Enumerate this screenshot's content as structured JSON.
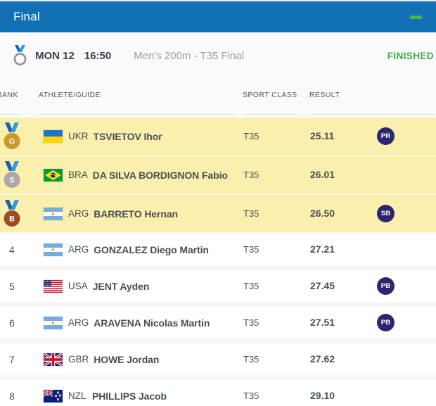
{
  "panel": {
    "title": "Final"
  },
  "event": {
    "day": "MON 12",
    "time": "16:50",
    "name": "Men's 200m - T35 Final",
    "status": "FINISHED"
  },
  "table": {
    "headers": {
      "rank": "RANK",
      "athlete": "ATHLETE/GUIDE",
      "sport_class": "SPORT CLASS",
      "result": "RESULT"
    },
    "rows": [
      {
        "rank": "1",
        "medal": "gold",
        "medal_letter": "G",
        "noc": "UKR",
        "name": "TSVIETOV Ihor",
        "sport_class": "T35",
        "result": "25.11",
        "badge": "PR",
        "highlight": true
      },
      {
        "rank": "2",
        "medal": "silver",
        "medal_letter": "S",
        "noc": "BRA",
        "name": "DA SILVA BORDIGNON Fabio",
        "sport_class": "T35",
        "result": "26.01",
        "badge": "",
        "highlight": true
      },
      {
        "rank": "3",
        "medal": "bronze",
        "medal_letter": "B",
        "noc": "ARG",
        "name": "BARRETO Hernan",
        "sport_class": "T35",
        "result": "26.50",
        "badge": "SB",
        "highlight": true
      },
      {
        "rank": "4",
        "medal": "",
        "medal_letter": "",
        "noc": "ARG",
        "name": "GONZALEZ Diego Martin",
        "sport_class": "T35",
        "result": "27.21",
        "badge": "",
        "highlight": false
      },
      {
        "rank": "5",
        "medal": "",
        "medal_letter": "",
        "noc": "USA",
        "name": "JENT Ayden",
        "sport_class": "T35",
        "result": "27.45",
        "badge": "PB",
        "highlight": false
      },
      {
        "rank": "6",
        "medal": "",
        "medal_letter": "",
        "noc": "ARG",
        "name": "ARAVENA Nicolas Martin",
        "sport_class": "T35",
        "result": "27.51",
        "badge": "PB",
        "highlight": false
      },
      {
        "rank": "7",
        "medal": "",
        "medal_letter": "",
        "noc": "GBR",
        "name": "HOWE Jordan",
        "sport_class": "T35",
        "result": "27.62",
        "badge": "",
        "highlight": false
      },
      {
        "rank": "8",
        "medal": "",
        "medal_letter": "",
        "noc": "NZL",
        "name": "PHILLIPS Jacob",
        "sport_class": "T35",
        "result": "29.10",
        "badge": "",
        "highlight": false
      }
    ]
  },
  "colors": {
    "header_blue": "#1271B5",
    "collapse_green": "#4DB24A",
    "status_green": "#3FA94C",
    "highlight_yellow": "#FBEFAD",
    "badge_navy": "#2B2670",
    "medal_gold": "#C9992B",
    "medal_silver": "#A9A9A9",
    "medal_bronze": "#9E4B24",
    "ribbon_blue_dark": "#1565A8",
    "ribbon_blue_light": "#2E9BE6"
  }
}
